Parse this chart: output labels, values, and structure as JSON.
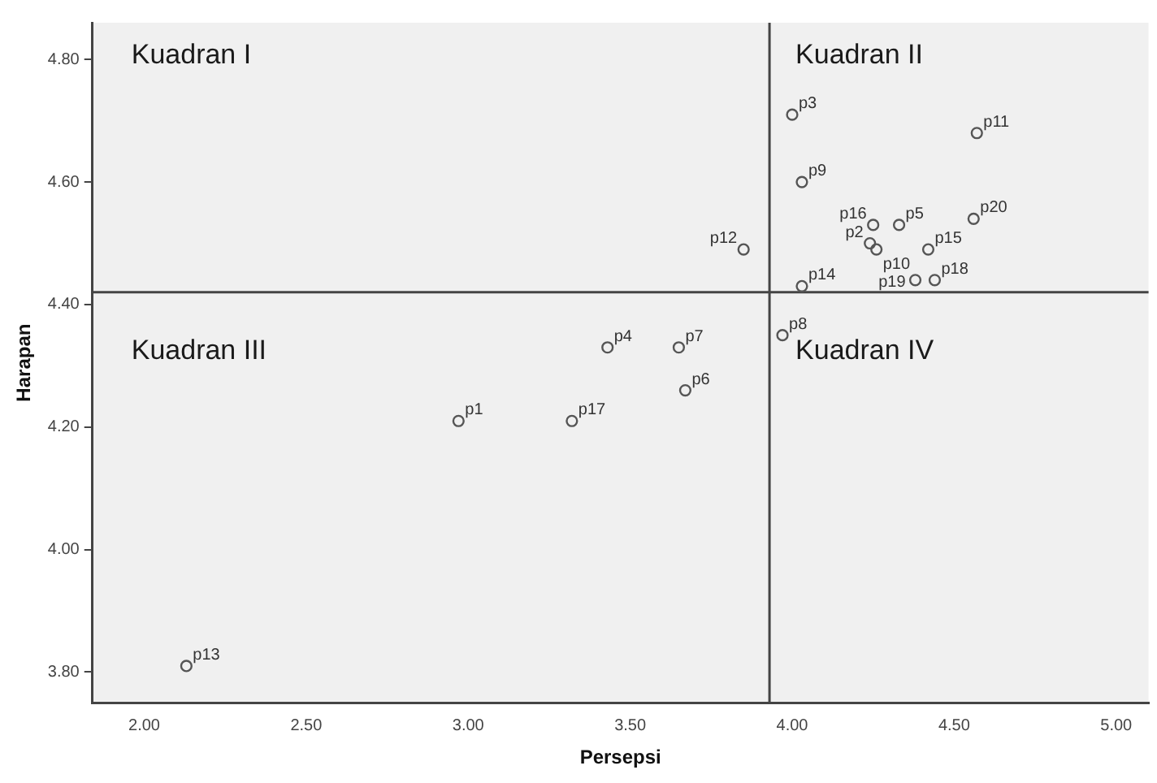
{
  "chart_data": {
    "type": "scatter",
    "xlabel": "Persepsi",
    "ylabel": "Harapan",
    "x": [
      2.97,
      4.24,
      4.0,
      3.43,
      4.33,
      3.67,
      3.65,
      3.97,
      4.03,
      4.26,
      4.57,
      3.85,
      2.13,
      4.03,
      4.42,
      4.25,
      3.32,
      4.44,
      4.38,
      4.56
    ],
    "values": [
      4.21,
      4.5,
      4.71,
      4.33,
      4.53,
      4.26,
      4.33,
      4.35,
      4.6,
      4.49,
      4.68,
      4.49,
      3.81,
      4.43,
      4.49,
      4.53,
      4.21,
      4.44,
      4.44,
      4.54
    ],
    "value_labels": [
      "p1",
      "p2",
      "p3",
      "p4",
      "p5",
      "p6",
      "p7",
      "p8",
      "p9",
      "p10",
      "p11",
      "p12",
      "p13",
      "p14",
      "p15",
      "p16",
      "p17",
      "p18",
      "p19",
      "p20"
    ],
    "color": "#555555",
    "marker": "circle",
    "xlim": [
      1.84,
      5.1
    ],
    "ylim": [
      3.75,
      4.86
    ],
    "xticks": [
      {
        "value": 2,
        "label": "2.00"
      },
      {
        "value": 2.5,
        "label": "2.50"
      },
      {
        "value": 3,
        "label": "3.00"
      },
      {
        "value": 3.5,
        "label": "3.50"
      },
      {
        "value": 4,
        "label": "4.00"
      },
      {
        "value": 4.5,
        "label": "4.50"
      },
      {
        "value": 5,
        "label": "5.00"
      }
    ],
    "yticks": [
      {
        "value": 3.8,
        "label": "3.80"
      },
      {
        "value": 4,
        "label": "4.00"
      },
      {
        "value": 4.2,
        "label": "4.20"
      },
      {
        "value": 4.4,
        "label": "4.40"
      },
      {
        "value": 4.6,
        "label": "4.60"
      },
      {
        "value": 4.8,
        "label": "4.80"
      }
    ],
    "ref_lines": [
      {
        "axis": "x",
        "value": 3.93,
        "color": "#444444"
      },
      {
        "axis": "y",
        "value": 4.42,
        "color": "#444444"
      }
    ],
    "annotations": [
      "Kuadran I",
      "Kuadran II",
      "Kuadran III",
      "Kuadran IV"
    ],
    "grid": false,
    "legend": false
  }
}
